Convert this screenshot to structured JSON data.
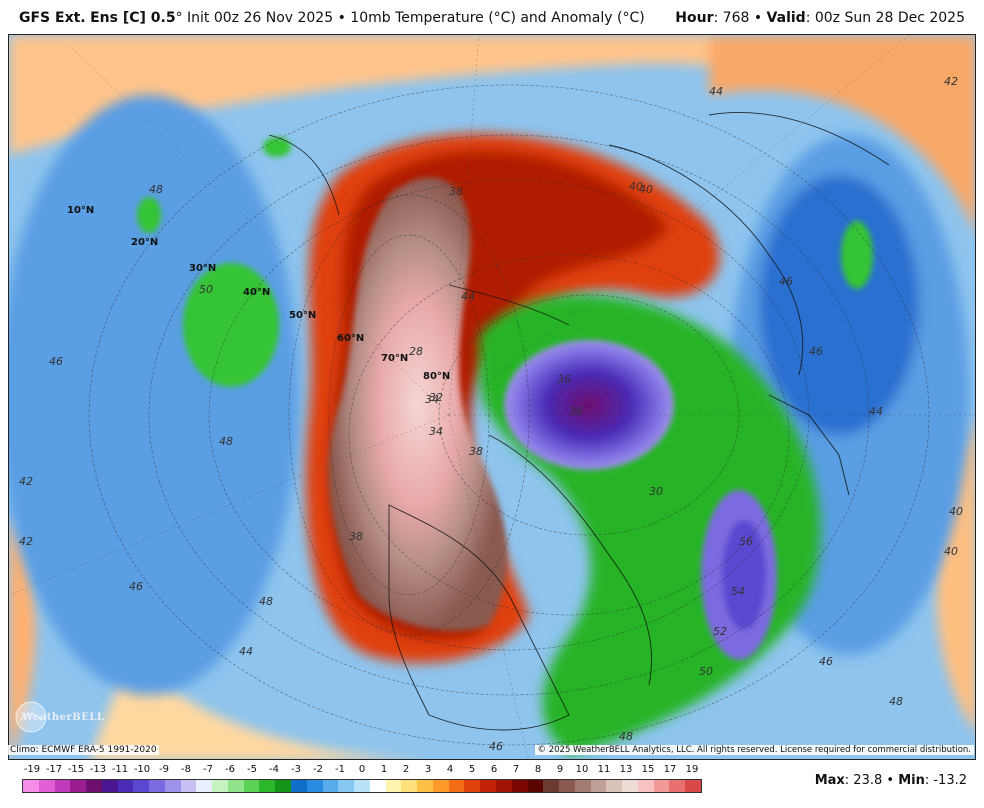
{
  "header": {
    "model_bold": "GFS Ext.",
    "model_ens": "Ens [C] 0.5",
    "degree": "°",
    "init_text": " Init 00z 26 Nov 2025 • 10mb Temperature (°C) and Anomaly (°C)",
    "hour_label": "Hour",
    "hour_value": ": 768 • ",
    "valid_label": "Valid",
    "valid_value": ": 00z Sun 28 Dec 2025"
  },
  "map": {
    "latitude_labels": [
      "10°N",
      "20°N",
      "30°N",
      "40°N",
      "50°N",
      "60°N",
      "70°N",
      "80°N"
    ],
    "contour_labels": [
      "46",
      "48",
      "50",
      "48",
      "42",
      "44",
      "42",
      "48",
      "46",
      "44",
      "42",
      "40",
      "40",
      "36",
      "38",
      "32",
      "34",
      "38",
      "56",
      "54",
      "52",
      "50",
      "36",
      "44",
      "46",
      "48",
      "40",
      "40",
      "46",
      "44",
      "46",
      "46",
      "48",
      "38",
      "34",
      "30",
      "28"
    ]
  },
  "footer": {
    "climo": "Climo: ECMWF ERA-5 1991-2020",
    "copyright": "© 2025 WeatherBELL Analytics, LLC. All rights reserved. License required for commercial distribution.",
    "logo": "WeatherBELL",
    "max_label": "Max",
    "max_value": ": 23.8 • ",
    "min_label": "Min",
    "min_value": ": -13.2"
  },
  "colorbar": {
    "labels": [
      "-19",
      "-17",
      "-15",
      "-13",
      "-11",
      "-10",
      "-9",
      "-8",
      "-7",
      "-6",
      "-5",
      "-4",
      "-3",
      "-2",
      "-1",
      "0",
      "1",
      "2",
      "3",
      "4",
      "5",
      "6",
      "7",
      "8",
      "9",
      "10",
      "11",
      "13",
      "15",
      "17",
      "19"
    ],
    "colors": [
      "#f58ee8",
      "#e35fd8",
      "#c33bbd",
      "#9a1e8f",
      "#6e0e6e",
      "#4a1590",
      "#4a2bb5",
      "#5a48d0",
      "#7b6be0",
      "#9d92ea",
      "#c6c1f2",
      "#e8f0ff",
      "#c6f2c2",
      "#90e38b",
      "#5bd156",
      "#2cb82a",
      "#16941a",
      "#0f6ec7",
      "#2a8ce0",
      "#58acec",
      "#86c8f2",
      "#b7e2f8",
      "#ffffff",
      "#fff3b0",
      "#ffe07a",
      "#ffc048",
      "#ff9a2a",
      "#f46c16",
      "#e0420b",
      "#c22205",
      "#a01202",
      "#7a0801",
      "#5a0500",
      "#6b3a30",
      "#8a5a50",
      "#a47c72",
      "#bea096",
      "#d8c2ba",
      "#eedbd6",
      "#f8c2c2",
      "#f29a9a",
      "#e87070",
      "#d84848"
    ]
  }
}
